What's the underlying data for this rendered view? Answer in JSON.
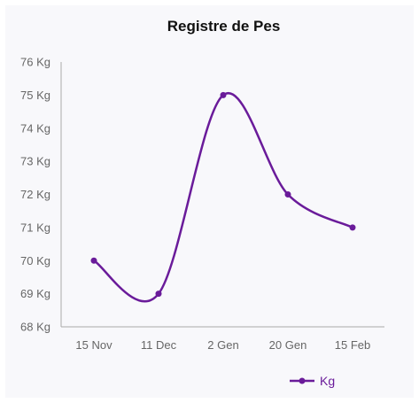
{
  "chart_data": {
    "type": "line",
    "title": "Registre de Pes",
    "xlabel": "",
    "ylabel": "",
    "categories": [
      "15 Nov",
      "11 Dec",
      "2 Gen",
      "20 Gen",
      "15 Feb"
    ],
    "series": [
      {
        "name": "Kg",
        "values": [
          70,
          69,
          75,
          72,
          71
        ],
        "color": "#6a1b9a"
      }
    ],
    "y_ticks": [
      "68 Kg",
      "69 Kg",
      "70 Kg",
      "71 Kg",
      "72 Kg",
      "73 Kg",
      "74 Kg",
      "75 Kg",
      "76 Kg"
    ],
    "ylim": [
      68,
      76
    ],
    "y_unit": "Kg",
    "grid": false,
    "legend_position": "bottom-right",
    "curve": "smooth"
  },
  "colors": {
    "background": "#ffffff",
    "panel": "#f8f8fb",
    "axis": "#aaaaaa",
    "tick_text": "#666666",
    "series": "#6a1b9a"
  }
}
